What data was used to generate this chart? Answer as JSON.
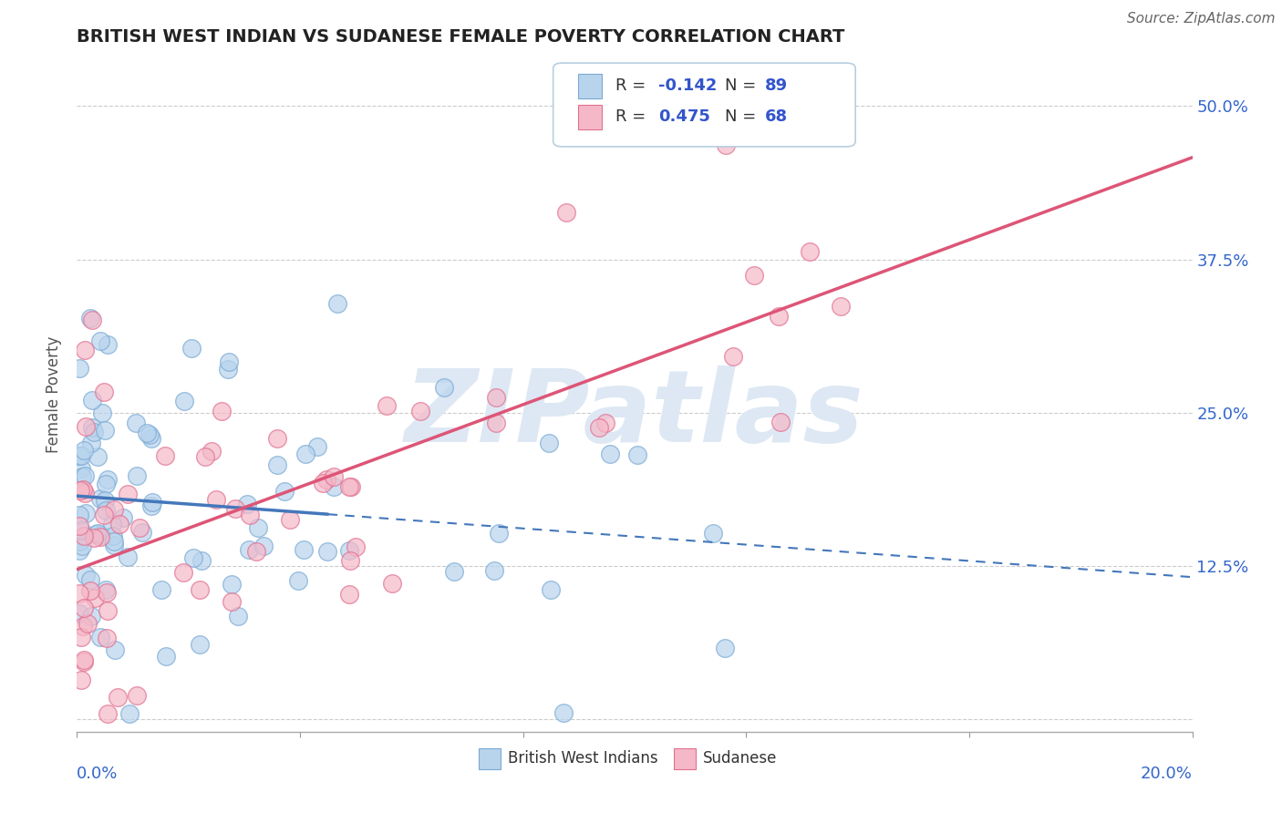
{
  "title": "BRITISH WEST INDIAN VS SUDANESE FEMALE POVERTY CORRELATION CHART",
  "source": "Source: ZipAtlas.com",
  "ylabel": "Female Poverty",
  "watermark": "ZIPatlas",
  "xlim": [
    0.0,
    20.0
  ],
  "ylim": [
    -1.0,
    54.0
  ],
  "yticks": [
    0.0,
    12.5,
    25.0,
    37.5,
    50.0
  ],
  "ytick_labels": [
    "",
    "12.5%",
    "25.0%",
    "37.5%",
    "50.0%"
  ],
  "series": [
    {
      "name": "British West Indians",
      "R": -0.142,
      "N": 89,
      "color": "#b8d4ed",
      "edge_color": "#7aaad4",
      "trend_color": "#4477bb",
      "solid_end": 4.5
    },
    {
      "name": "Sudanese",
      "R": 0.475,
      "N": 68,
      "color": "#f5b8c8",
      "edge_color": "#e07090",
      "trend_color": "#dd5577"
    }
  ],
  "grid_color": "#cccccc",
  "background_color": "#ffffff",
  "watermark_color": "#dde8f4",
  "title_fontsize": 14,
  "source_fontsize": 11,
  "ylabel_fontsize": 12,
  "tick_fontsize": 13
}
